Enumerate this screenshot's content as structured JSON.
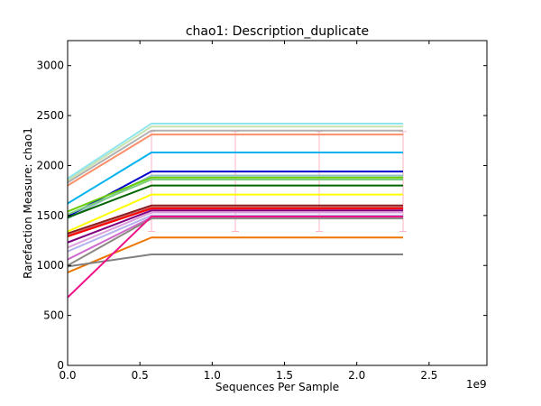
{
  "chart_data": {
    "type": "line",
    "title": "chao1: Description_duplicate",
    "xlabel": "Sequences Per Sample",
    "ylabel": "Rarefaction Measure: chao1",
    "x_offset_label": "1e9",
    "xlim": [
      0.0,
      2.9
    ],
    "ylim": [
      0,
      3250
    ],
    "x_ticks": [
      0.0,
      0.5,
      1.0,
      1.5,
      2.0,
      2.5
    ],
    "x_tick_labels": [
      "0.0",
      "0.5",
      "1.0",
      "1.5",
      "2.0",
      "2.5"
    ],
    "y_ticks": [
      0,
      500,
      1000,
      1500,
      2000,
      2500,
      3000
    ],
    "y_tick_labels": [
      "0",
      "500",
      "1000",
      "1500",
      "2000",
      "2500",
      "3000"
    ],
    "x": [
      0.0,
      0.58,
      1.16,
      1.74,
      2.32
    ],
    "series": [
      {
        "color": "#8ee5ee",
        "values": [
          1870,
          2420,
          2420,
          2420,
          2420
        ]
      },
      {
        "color": "#c6e2b0",
        "values": [
          1850,
          2390,
          2390,
          2390,
          2390
        ]
      },
      {
        "color": "#b0b0b0",
        "values": [
          1830,
          2350,
          2350,
          2350,
          2350
        ]
      },
      {
        "color": "#fa8f6a",
        "values": [
          1800,
          2310,
          2310,
          2310,
          2310
        ]
      },
      {
        "color": "#00b2ee",
        "values": [
          1620,
          2130,
          2130,
          2130,
          2130
        ]
      },
      {
        "color": "#0000cd",
        "values": [
          1490,
          1940,
          1940,
          1940,
          1940
        ]
      },
      {
        "color": "#9ac0cd",
        "values": [
          1470,
          1900,
          1900,
          1900,
          1900
        ]
      },
      {
        "color": "#66cd00",
        "values": [
          1540,
          1880,
          1880,
          1880,
          1880
        ]
      },
      {
        "color": "#7ccd7c",
        "values": [
          1510,
          1860,
          1860,
          1860,
          1860
        ]
      },
      {
        "color": "#006400",
        "values": [
          1480,
          1800,
          1800,
          1800,
          1800
        ]
      },
      {
        "color": "#ffff00",
        "values": [
          1340,
          1710,
          1710,
          1710,
          1710
        ]
      },
      {
        "color": "#8b1a1a",
        "values": [
          1320,
          1600,
          1600,
          1600,
          1600
        ]
      },
      {
        "color": "#cd5c5c",
        "values": [
          1300,
          1580,
          1580,
          1580,
          1580
        ]
      },
      {
        "color": "#ff0000",
        "values": [
          1290,
          1570,
          1570,
          1570,
          1570
        ]
      },
      {
        "color": "#7f007f",
        "values": [
          1230,
          1550,
          1550,
          1550,
          1550
        ]
      },
      {
        "color": "#dda0dd",
        "values": [
          1180,
          1530,
          1530,
          1530,
          1530
        ]
      },
      {
        "color": "#b3b3ee",
        "values": [
          1140,
          1500,
          1500,
          1500,
          1500
        ]
      },
      {
        "color": "#cd69c9",
        "values": [
          1060,
          1480,
          1480,
          1480,
          1480
        ]
      },
      {
        "color": "#8b8b83",
        "values": [
          1000,
          1470,
          1470,
          1470,
          1470
        ]
      },
      {
        "color": "#ee7600",
        "values": [
          930,
          1280,
          1280,
          1280,
          1280
        ]
      },
      {
        "color": "#808080",
        "values": [
          990,
          1110,
          1110,
          1110,
          1110
        ]
      },
      {
        "color": "#ee1289",
        "values": [
          680,
          1490,
          1490,
          1490,
          1490
        ]
      }
    ],
    "error_bars": {
      "color": "#ffb6c1",
      "x": [
        0.58,
        1.16,
        1.74,
        2.32
      ],
      "low": [
        1340,
        1340,
        1340,
        1340
      ],
      "high": [
        2340,
        2340,
        2340,
        2340
      ]
    }
  }
}
